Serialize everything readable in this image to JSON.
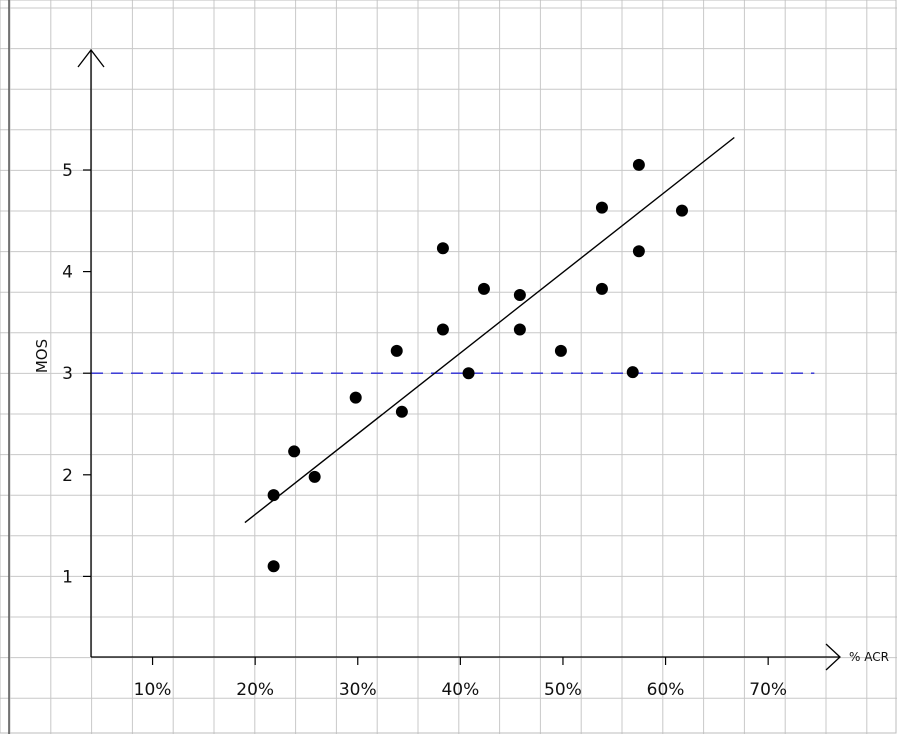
{
  "chart_data": {
    "type": "scatter",
    "xlabel": "% ACR",
    "ylabel": "MOS",
    "x_ticks": [
      {
        "value": 10,
        "label": "10%"
      },
      {
        "value": 20,
        "label": "20%"
      },
      {
        "value": 30,
        "label": "30%"
      },
      {
        "value": 40,
        "label": "40%"
      },
      {
        "value": 50,
        "label": "50%"
      },
      {
        "value": 60,
        "label": "60%"
      },
      {
        "value": 70,
        "label": "70%"
      }
    ],
    "y_ticks": [
      {
        "value": 1,
        "label": "1"
      },
      {
        "value": 2,
        "label": "2"
      },
      {
        "value": 3,
        "label": "3"
      },
      {
        "value": 4,
        "label": "4"
      },
      {
        "value": 5,
        "label": "5"
      }
    ],
    "xlim": [
      4,
      76
    ],
    "ylim": [
      0.2,
      6.2
    ],
    "grid": true,
    "points": [
      {
        "x": 21.8,
        "y": 1.1
      },
      {
        "x": 21.8,
        "y": 1.8
      },
      {
        "x": 23.8,
        "y": 2.23
      },
      {
        "x": 25.8,
        "y": 1.98
      },
      {
        "x": 29.8,
        "y": 2.76
      },
      {
        "x": 33.8,
        "y": 3.22
      },
      {
        "x": 34.3,
        "y": 2.62
      },
      {
        "x": 38.3,
        "y": 3.43
      },
      {
        "x": 38.3,
        "y": 4.23
      },
      {
        "x": 40.8,
        "y": 3.0
      },
      {
        "x": 42.3,
        "y": 3.83
      },
      {
        "x": 45.8,
        "y": 3.43
      },
      {
        "x": 45.8,
        "y": 3.77
      },
      {
        "x": 49.8,
        "y": 3.22
      },
      {
        "x": 53.8,
        "y": 4.63
      },
      {
        "x": 53.8,
        "y": 3.83
      },
      {
        "x": 56.8,
        "y": 3.01
      },
      {
        "x": 57.4,
        "y": 5.05
      },
      {
        "x": 57.4,
        "y": 4.2
      },
      {
        "x": 61.6,
        "y": 4.6
      }
    ],
    "trendline": {
      "x1": 19,
      "y1": 1.53,
      "x2": 66.7,
      "y2": 5.32
    },
    "reference_line": {
      "y": 3,
      "x_start": 4,
      "x_end": 74.5,
      "color": "#2b2bd6",
      "style": "dashed"
    },
    "colors": {
      "points": "#000000",
      "grid": "#c8c8c8",
      "reference": "#2b2bd6"
    }
  }
}
